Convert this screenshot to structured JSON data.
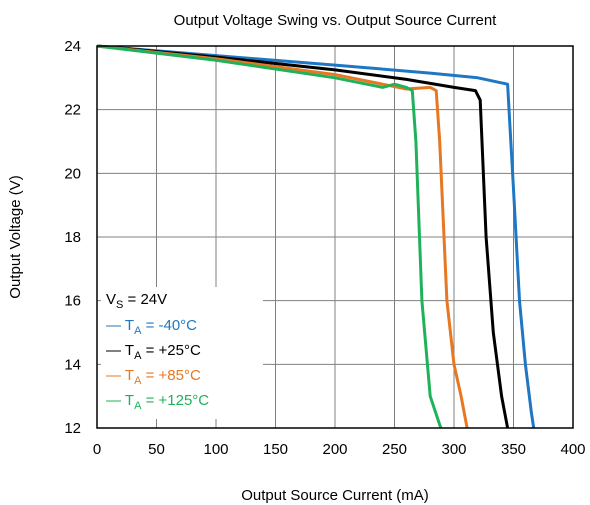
{
  "chart_data": {
    "type": "line",
    "title": "Output Voltage Swing vs. Output Source Current",
    "xlabel": "Output Source Current (mA)",
    "ylabel": "Output Voltage (V)",
    "xlim": [
      0,
      400
    ],
    "ylim": [
      12,
      24
    ],
    "xticks": [
      "0",
      "50",
      "100",
      "150",
      "200",
      "250",
      "300",
      "350",
      "400"
    ],
    "yticks": [
      "12",
      "14",
      "16",
      "18",
      "20",
      "22",
      "24"
    ],
    "grid": true,
    "legend": {
      "placement": "bottom-left",
      "header": {
        "main": "V",
        "sub": "S",
        "rest": " = 24V"
      },
      "entries": [
        {
          "prefix": "— T",
          "sub": "A",
          "rest": " = -40°C",
          "color": "#1f77c4"
        },
        {
          "prefix": "— T",
          "sub": "A",
          "rest": " = +25°C",
          "color": "#000000"
        },
        {
          "prefix": "— T",
          "sub": "A",
          "rest": " = +85°C",
          "color": "#e87722"
        },
        {
          "prefix": "— T",
          "sub": "A",
          "rest": " = +125°C",
          "color": "#1fb25a"
        }
      ]
    },
    "series": [
      {
        "color": "#1f77c4",
        "points": [
          [
            0,
            24
          ],
          [
            100,
            23.7
          ],
          [
            200,
            23.4
          ],
          [
            280,
            23.15
          ],
          [
            320,
            23.0
          ],
          [
            345,
            22.8
          ],
          [
            350,
            19.5
          ],
          [
            355,
            16
          ],
          [
            360,
            14
          ],
          [
            365,
            12.5
          ],
          [
            367,
            12
          ]
        ]
      },
      {
        "color": "#000000",
        "points": [
          [
            0,
            24
          ],
          [
            100,
            23.65
          ],
          [
            200,
            23.25
          ],
          [
            260,
            22.95
          ],
          [
            300,
            22.7
          ],
          [
            318,
            22.6
          ],
          [
            322,
            22.3
          ],
          [
            327,
            18
          ],
          [
            333,
            15
          ],
          [
            340,
            13
          ],
          [
            345,
            12
          ]
        ]
      },
      {
        "color": "#e87722",
        "points": [
          [
            0,
            24
          ],
          [
            100,
            23.6
          ],
          [
            200,
            23.1
          ],
          [
            240,
            22.8
          ],
          [
            260,
            22.65
          ],
          [
            280,
            22.7
          ],
          [
            285,
            22.6
          ],
          [
            288,
            21
          ],
          [
            294,
            16
          ],
          [
            300,
            14
          ],
          [
            306,
            13
          ],
          [
            311,
            12
          ]
        ]
      },
      {
        "color": "#1fb25a",
        "points": [
          [
            0,
            24
          ],
          [
            100,
            23.55
          ],
          [
            200,
            23.0
          ],
          [
            240,
            22.7
          ],
          [
            250,
            22.8
          ],
          [
            260,
            22.7
          ],
          [
            265,
            22.6
          ],
          [
            268,
            21
          ],
          [
            273,
            16
          ],
          [
            280,
            13
          ],
          [
            288,
            12.1
          ],
          [
            289,
            12
          ]
        ]
      }
    ]
  }
}
